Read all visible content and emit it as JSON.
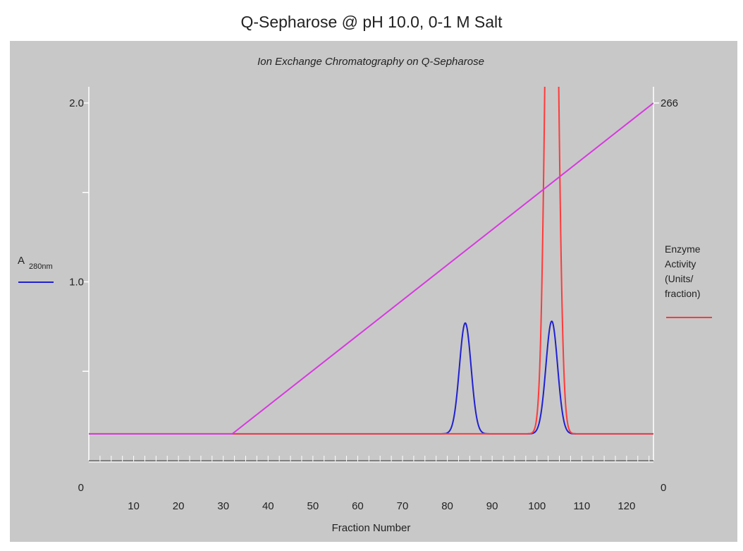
{
  "page": {
    "title": "Q-Sepharose @ pH 10.0, 0-1 M Salt"
  },
  "chart_data": {
    "type": "line",
    "title": "Ion Exchange Chromatography on Q-Sepharose",
    "xlabel": "Fraction Number",
    "xlim": [
      0,
      126
    ],
    "x_ticks": [
      10,
      20,
      30,
      40,
      50,
      60,
      70,
      80,
      90,
      100,
      110,
      120
    ],
    "x_minor_step": 2.5,
    "y_left": {
      "label_main": "A",
      "label_sub": "280nm",
      "ylim": [
        0,
        2.0
      ],
      "ticks": [
        "0",
        "1.0",
        "2.0"
      ],
      "tick_values": [
        0,
        1.0,
        2.0
      ],
      "minor_ticks": [
        0.5,
        1.5
      ],
      "color": "#2020d0"
    },
    "y_right": {
      "label_lines": [
        "Enzyme",
        "Activity",
        "(Units/",
        "fraction)"
      ],
      "ylim": [
        0,
        266
      ],
      "ticks": [
        "0",
        "266"
      ],
      "tick_values": [
        0,
        266
      ],
      "color": "#ff3a3a"
    },
    "grid": false,
    "series": [
      {
        "axis": "left",
        "color": "#2020d0",
        "baseline": 0.15,
        "peaks": [
          {
            "center": 84,
            "height": 0.62,
            "width": 1.3
          },
          {
            "center": 103.3,
            "height": 0.63,
            "width": 1.3
          }
        ]
      },
      {
        "axis": "right",
        "color": "#ff3a3a",
        "baseline": 20,
        "peaks": [
          {
            "center": 103.3,
            "height": 600,
            "width": 1.2
          }
        ]
      },
      {
        "axis": "left",
        "color": "#d838e0",
        "x": [
          0,
          32,
          126
        ],
        "y": [
          0.15,
          0.15,
          2.0
        ]
      }
    ]
  }
}
